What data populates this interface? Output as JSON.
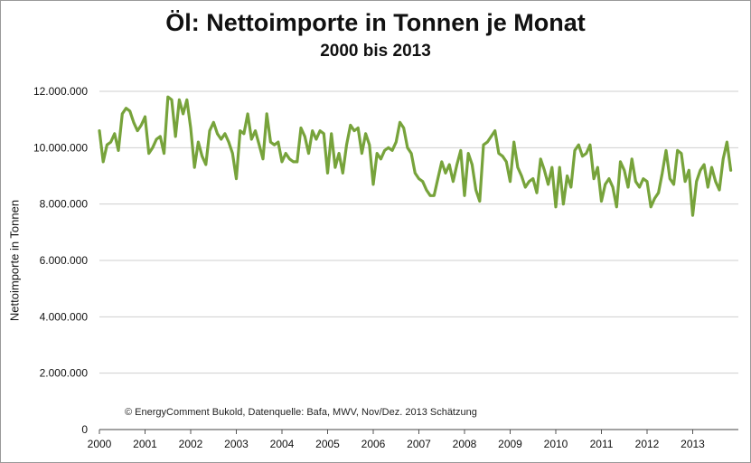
{
  "title": "Öl: Nettoimporte in Tonnen je Monat",
  "subtitle": "2000 bis 2013",
  "ylabel": "Nettoimporte in Tonnen",
  "annotation": "© EnergyComment Bukold, Datenquelle: Bafa, MWV, Nov/Dez. 2013 Schätzung",
  "chart_data": {
    "type": "line",
    "title": "Öl: Nettoimporte in Tonnen je Monat",
    "subtitle": "2000 bis 2013",
    "ylabel": "Nettoimporte in Tonnen",
    "xlabel": "",
    "ylim": [
      0,
      12000000
    ],
    "xlim": [
      2000,
      2014
    ],
    "grid": true,
    "line_color": "#77a33b",
    "y_ticks": [
      0,
      2000000,
      4000000,
      6000000,
      8000000,
      10000000,
      12000000
    ],
    "y_tick_labels": [
      "0",
      "2.000.000",
      "4.000.000",
      "6.000.000",
      "8.000.000",
      "10.000.000",
      "12.000.000"
    ],
    "x_ticks": [
      2000,
      2001,
      2002,
      2003,
      2004,
      2005,
      2006,
      2007,
      2008,
      2009,
      2010,
      2011,
      2012,
      2013
    ],
    "x_tick_labels": [
      "2000",
      "2001",
      "2002",
      "2003",
      "2004",
      "2005",
      "2006",
      "2007",
      "2008",
      "2009",
      "2010",
      "2011",
      "2012",
      "2013"
    ],
    "x_start": "2000-01",
    "x_step": "1 month",
    "values": [
      10600000,
      9500000,
      10100000,
      10200000,
      10500000,
      9900000,
      11200000,
      11400000,
      11300000,
      10900000,
      10600000,
      10800000,
      11100000,
      9800000,
      10000000,
      10300000,
      10400000,
      9800000,
      11800000,
      11700000,
      10400000,
      11700000,
      11200000,
      11700000,
      10700000,
      9300000,
      10200000,
      9700000,
      9400000,
      10600000,
      10900000,
      10500000,
      10300000,
      10500000,
      10200000,
      9800000,
      8900000,
      10600000,
      10500000,
      11200000,
      10300000,
      10600000,
      10100000,
      9600000,
      11200000,
      10200000,
      10100000,
      10200000,
      9500000,
      9800000,
      9600000,
      9500000,
      9500000,
      10700000,
      10400000,
      9800000,
      10600000,
      10300000,
      10600000,
      10500000,
      9100000,
      10500000,
      9300000,
      9800000,
      9100000,
      10100000,
      10800000,
      10600000,
      10700000,
      9800000,
      10500000,
      10100000,
      8700000,
      9800000,
      9600000,
      9900000,
      10000000,
      9900000,
      10200000,
      10900000,
      10700000,
      10000000,
      9800000,
      9100000,
      8900000,
      8800000,
      8500000,
      8300000,
      8300000,
      8900000,
      9500000,
      9100000,
      9400000,
      8800000,
      9400000,
      9900000,
      8300000,
      9800000,
      9400000,
      8500000,
      8100000,
      10100000,
      10200000,
      10400000,
      10600000,
      9800000,
      9700000,
      9500000,
      8800000,
      10200000,
      9300000,
      9000000,
      8600000,
      8800000,
      8900000,
      8400000,
      9600000,
      9200000,
      8700000,
      9300000,
      7900000,
      9300000,
      8000000,
      9000000,
      8600000,
      9900000,
      10100000,
      9700000,
      9800000,
      10100000,
      8900000,
      9300000,
      8100000,
      8700000,
      8900000,
      8600000,
      7900000,
      9500000,
      9200000,
      8600000,
      9600000,
      8800000,
      8600000,
      8900000,
      8800000,
      7900000,
      8200000,
      8400000,
      9100000,
      9900000,
      8900000,
      8700000,
      9900000,
      9800000,
      8800000,
      9200000,
      7600000,
      8800000,
      9200000,
      9400000,
      8600000,
      9300000,
      8800000,
      8500000,
      9600000,
      10200000,
      9200000
    ]
  }
}
